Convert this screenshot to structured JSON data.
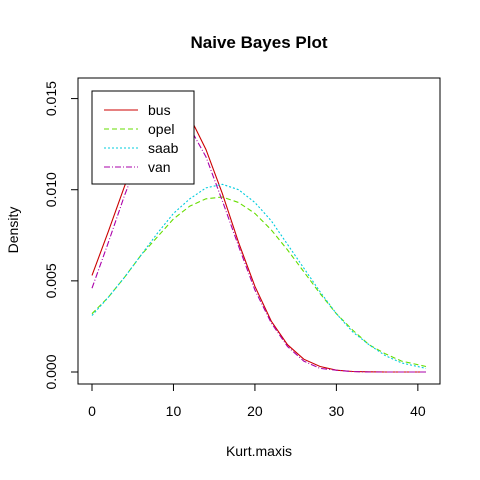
{
  "chart_data": {
    "type": "line",
    "title": "Naive Bayes Plot",
    "xlabel": "Kurt.maxis",
    "ylabel": "Density",
    "xlim": [
      0,
      41
    ],
    "ylim": [
      0,
      0.0158
    ],
    "xticks": [
      0,
      10,
      20,
      30,
      40
    ],
    "yticks": [
      0.0,
      0.005,
      0.01,
      0.015
    ],
    "ytick_labels": [
      "0.000",
      "0.005",
      "0.010",
      "0.015"
    ],
    "legend_position": "top-left",
    "series": [
      {
        "name": "bus",
        "color": "#cc0000",
        "dash": "solid",
        "x": [
          0,
          2,
          4,
          6,
          8,
          10,
          12,
          14,
          16,
          18,
          20,
          22,
          24,
          26,
          28,
          30,
          32,
          34,
          36,
          38,
          41
        ],
        "y": [
          0.0053,
          0.0077,
          0.0102,
          0.0125,
          0.014,
          0.0146,
          0.014,
          0.0122,
          0.0098,
          0.0071,
          0.0047,
          0.0028,
          0.0015,
          0.0007,
          0.0003,
          0.0001,
          3e-05,
          1e-05,
          0.0,
          0.0,
          0.0
        ]
      },
      {
        "name": "opel",
        "color": "#66dd00",
        "dash": "5,3",
        "x": [
          0,
          2,
          4,
          6,
          8,
          10,
          12,
          14,
          16,
          18,
          20,
          22,
          24,
          26,
          28,
          30,
          32,
          34,
          36,
          38,
          41
        ],
        "y": [
          0.0032,
          0.0041,
          0.0052,
          0.0064,
          0.0074,
          0.0084,
          0.0091,
          0.0095,
          0.0096,
          0.0093,
          0.0087,
          0.0078,
          0.0067,
          0.0055,
          0.0043,
          0.0032,
          0.0023,
          0.0015,
          0.001,
          0.0006,
          0.0003
        ]
      },
      {
        "name": "saab",
        "color": "#00ccdd",
        "dash": "2,2",
        "x": [
          0,
          2,
          4,
          6,
          8,
          10,
          12,
          14,
          16,
          18,
          20,
          22,
          24,
          26,
          28,
          30,
          32,
          34,
          36,
          38,
          41
        ],
        "y": [
          0.0031,
          0.0041,
          0.0052,
          0.0064,
          0.0076,
          0.0087,
          0.0095,
          0.0101,
          0.0103,
          0.01,
          0.0093,
          0.0083,
          0.007,
          0.0057,
          0.0044,
          0.0032,
          0.0022,
          0.0015,
          0.0009,
          0.0005,
          0.0002
        ]
      },
      {
        "name": "van",
        "color": "#aa00aa",
        "dash": "6,2,1,2",
        "x": [
          0,
          2,
          4,
          6,
          8,
          10,
          12,
          14,
          16,
          18,
          20,
          22,
          24,
          26,
          28,
          30,
          32,
          34,
          36,
          38,
          41
        ],
        "y": [
          0.0046,
          0.0071,
          0.0097,
          0.012,
          0.0135,
          0.014,
          0.0134,
          0.0118,
          0.0094,
          0.0069,
          0.0045,
          0.0027,
          0.0014,
          0.0006,
          0.0002,
          0.0001,
          2e-05,
          0.0,
          0.0,
          0.0,
          0.0
        ]
      }
    ]
  }
}
